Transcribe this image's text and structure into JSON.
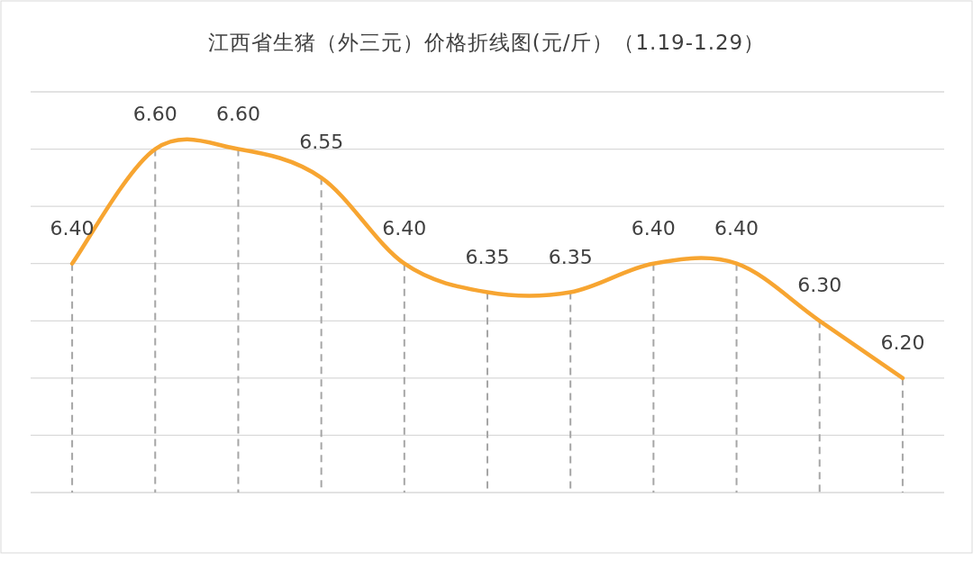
{
  "chart_data": {
    "type": "line",
    "title": "江西省生猪（外三元）价格折线图(元/斤）（1.19-1.29）",
    "categories": [
      null,
      null,
      null,
      null,
      null,
      null,
      null,
      null,
      null,
      null,
      null
    ],
    "series": [
      {
        "color": "#f7a531",
        "values": [
          6.4,
          6.6,
          6.6,
          6.55,
          6.4,
          6.35,
          6.35,
          6.4,
          6.4,
          6.3,
          6.2
        ],
        "value_labels": [
          "6.40",
          "6.60",
          "6.60",
          "6.55",
          "6.40",
          "6.35",
          "6.35",
          "6.40",
          "6.40",
          "6.30",
          "6.20"
        ]
      }
    ],
    "ylim": [
      6.0,
      6.7
    ],
    "yticks": [
      {
        "value": 6.0,
        "label": null
      },
      {
        "value": 6.1,
        "label": null
      },
      {
        "value": 6.2,
        "label": null
      },
      {
        "value": 6.3,
        "label": null
      },
      {
        "value": 6.4,
        "label": null
      },
      {
        "value": 6.5,
        "label": null
      },
      {
        "value": 6.6,
        "label": null
      },
      {
        "value": 6.7,
        "label": null
      }
    ],
    "grid": true,
    "marker": "none",
    "line_style": "solid"
  }
}
